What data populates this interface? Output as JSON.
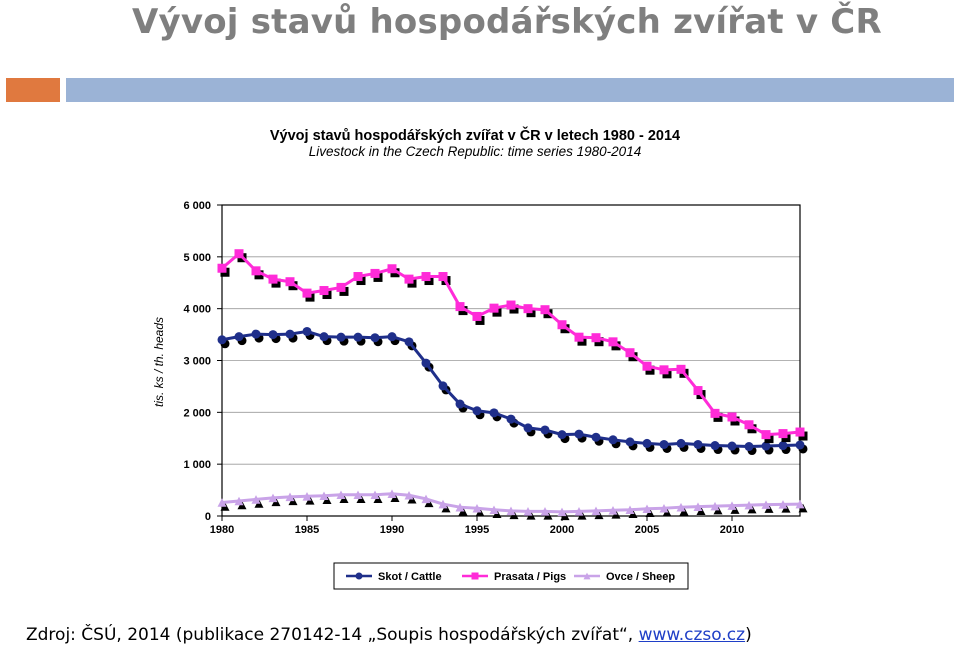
{
  "slide": {
    "title": "Vývoj stavů hospodářských zvířat v ČR",
    "source_text": "Zdroj: ČSÚ, 2014 (publikace 270142-14 „Soupis hospodářských zvířat“, ",
    "source_link": "www.czso.cz",
    "source_end": ")"
  },
  "colors": {
    "title": "#7f7f7f",
    "accent_orange": "#e0793f",
    "accent_blue": "#9bb3d6",
    "cattle": "#1f2f8a",
    "pigs": "#ff2bd8",
    "sheep": "#c9a3e8",
    "shadow": "#000000"
  },
  "chart_data": {
    "type": "line",
    "title": "Vývoj stavů hospodářských zvířat v ČR v letech 1980 - 2014",
    "subtitle": "Livestock in the Czech Republic: time series 1980-2014",
    "ylabel": "tis. ks / th. heads",
    "xlabel": "",
    "ylim": [
      0,
      6000
    ],
    "xlim": [
      1980,
      2014
    ],
    "yticks": [
      "0",
      "1 000",
      "2 000",
      "3 000",
      "4 000",
      "5 000",
      "6 000"
    ],
    "xticks": [
      "1980",
      "1985",
      "1990",
      "1995",
      "2000",
      "2005",
      "2010"
    ],
    "grid": "horizontal",
    "legend_position": "bottom",
    "x": [
      1980,
      1981,
      1982,
      1983,
      1984,
      1985,
      1986,
      1987,
      1988,
      1989,
      1990,
      1991,
      1992,
      1993,
      1994,
      1995,
      1996,
      1997,
      1998,
      1999,
      2000,
      2001,
      2002,
      2003,
      2004,
      2005,
      2006,
      2007,
      2008,
      2009,
      2010,
      2011,
      2012,
      2013,
      2014
    ],
    "series": [
      {
        "name": "Skot / Cattle",
        "marker": "circle",
        "values": [
          3400,
          3460,
          3510,
          3500,
          3510,
          3560,
          3460,
          3450,
          3450,
          3440,
          3460,
          3360,
          2950,
          2510,
          2160,
          2030,
          1990,
          1870,
          1700,
          1660,
          1570,
          1580,
          1520,
          1470,
          1430,
          1400,
          1380,
          1400,
          1380,
          1360,
          1350,
          1340,
          1350,
          1360,
          1370
        ]
      },
      {
        "name": "Prasata / Pigs",
        "marker": "square",
        "values": [
          4780,
          5060,
          4730,
          4570,
          4520,
          4300,
          4350,
          4410,
          4620,
          4680,
          4770,
          4570,
          4620,
          4620,
          4040,
          3850,
          4010,
          4070,
          4000,
          3980,
          3690,
          3450,
          3440,
          3360,
          3150,
          2890,
          2820,
          2830,
          2420,
          1980,
          1910,
          1760,
          1570,
          1590,
          1620
        ]
      },
      {
        "name": "Ovce / Sheep",
        "marker": "triangle",
        "values": [
          260,
          290,
          320,
          350,
          370,
          380,
          390,
          410,
          410,
          410,
          430,
          400,
          330,
          230,
          170,
          150,
          120,
          100,
          90,
          90,
          80,
          90,
          100,
          110,
          120,
          140,
          150,
          170,
          180,
          190,
          200,
          210,
          220,
          225,
          230
        ]
      }
    ]
  }
}
